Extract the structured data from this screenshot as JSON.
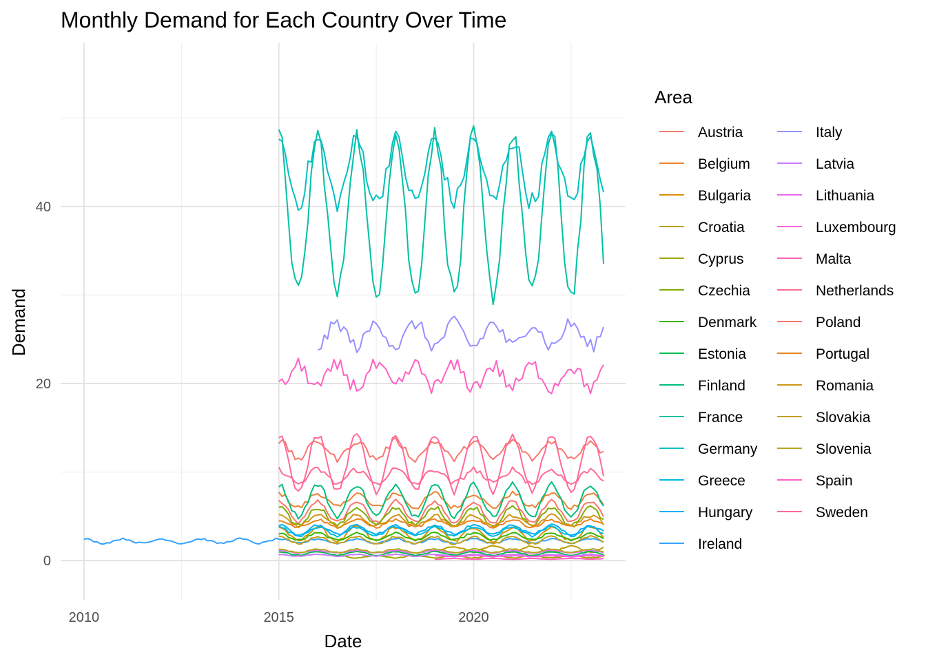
{
  "chart_data": {
    "type": "line",
    "title": "Monthly Demand for Each Country Over Time",
    "xlabel": "Date",
    "ylabel": "Demand",
    "xlim": [
      2009.4,
      2023.9
    ],
    "ylim": [
      -4.5,
      58.5
    ],
    "x_ticks": [
      {
        "value": 2010,
        "label": "2010"
      },
      {
        "value": 2015,
        "label": "2015"
      },
      {
        "value": 2020,
        "label": "2020"
      }
    ],
    "y_ticks": [
      {
        "value": 0,
        "label": "0"
      },
      {
        "value": 20,
        "label": "20"
      },
      {
        "value": 40,
        "label": "40"
      }
    ],
    "grid": true,
    "legend_position": "right",
    "legend_title": "Area",
    "series": [
      {
        "name": "Austria",
        "color": "#F8766D",
        "start": 2015.0,
        "base": 5.5,
        "amp": 1.2,
        "phase": 0.0,
        "noise": 0.25
      },
      {
        "name": "Belgium",
        "color": "#EA8331",
        "start": 2015.0,
        "base": 6.8,
        "amp": 0.8,
        "phase": 0.0,
        "noise": 0.3
      },
      {
        "name": "Bulgaria",
        "color": "#D89000",
        "start": 2015.0,
        "base": 3.0,
        "amp": 0.8,
        "phase": 0.0,
        "noise": 0.2
      },
      {
        "name": "Croatia",
        "color": "#C09B00",
        "start": 2019.0,
        "base": 1.3,
        "amp": 0.3,
        "phase": 0.5,
        "noise": 0.1
      },
      {
        "name": "Cyprus",
        "color": "#A3A500",
        "start": 2016.7,
        "base": 0.45,
        "amp": 0.15,
        "phase": 0.5,
        "noise": 0.05
      },
      {
        "name": "Czechia",
        "color": "#7CAE00",
        "start": 2015.0,
        "base": 5.0,
        "amp": 1.0,
        "phase": 0.0,
        "noise": 0.25
      },
      {
        "name": "Denmark",
        "color": "#39B600",
        "start": 2015.0,
        "base": 2.7,
        "amp": 0.4,
        "phase": 0.0,
        "noise": 0.12
      },
      {
        "name": "Estonia",
        "color": "#00BB4E",
        "start": 2015.0,
        "base": 0.8,
        "amp": 0.2,
        "phase": 0.0,
        "noise": 0.05
      },
      {
        "name": "Finland",
        "color": "#00BF7D",
        "start": 2015.0,
        "base": 6.8,
        "amp": 1.8,
        "phase": 0.0,
        "noise": 0.3
      },
      {
        "name": "France",
        "color": "#00C1A3",
        "start": 2015.0,
        "base": 39.0,
        "amp": 9.0,
        "phase": 0.0,
        "noise": 1.2
      },
      {
        "name": "Germany",
        "color": "#00BFC4",
        "start": 2015.0,
        "base": 44.0,
        "amp": 3.5,
        "phase": 0.0,
        "noise": 1.2
      },
      {
        "name": "Greece",
        "color": "#00BAE0",
        "start": 2015.0,
        "base": 3.3,
        "amp": 0.5,
        "phase": 0.0,
        "noise": 0.15
      },
      {
        "name": "Hungary",
        "color": "#00B0F6",
        "start": 2015.0,
        "base": 3.5,
        "amp": 0.5,
        "phase": 0.0,
        "noise": 0.15
      },
      {
        "name": "Ireland",
        "color": "#35A2FF",
        "start": 2010.0,
        "base": 2.2,
        "amp": 0.25,
        "phase": 0.0,
        "noise": 0.1
      },
      {
        "name": "Italy",
        "color": "#9590FF",
        "start": 2016.0,
        "base": 25.5,
        "amp": 1.3,
        "phase": 0.5,
        "noise": 0.8
      },
      {
        "name": "Latvia",
        "color": "#C77CFF",
        "start": 2015.0,
        "base": 0.6,
        "amp": 0.1,
        "phase": 0.0,
        "noise": 0.04
      },
      {
        "name": "Lithuania",
        "color": "#E76BF3",
        "start": 2015.0,
        "base": 1.0,
        "amp": 0.15,
        "phase": 0.0,
        "noise": 0.05
      },
      {
        "name": "Luxembourg",
        "color": "#FA62DB",
        "start": 2019.0,
        "base": 0.5,
        "amp": 0.05,
        "phase": 0.0,
        "noise": 0.03
      },
      {
        "name": "Malta",
        "color": "#FF62BC",
        "start": 2019.0,
        "base": 0.2,
        "amp": 0.05,
        "phase": 0.5,
        "noise": 0.02
      },
      {
        "name": "Netherlands",
        "color": "#FF6C91",
        "start": 2015.0,
        "base": 9.5,
        "amp": 0.8,
        "phase": 0.0,
        "noise": 0.35
      },
      {
        "name": "Poland",
        "color": "#F8766D",
        "start": 2015.0,
        "base": 12.5,
        "amp": 1.0,
        "phase": 0.0,
        "noise": 0.4
      },
      {
        "name": "Portugal",
        "color": "#E7851E",
        "start": 2015.0,
        "base": 4.2,
        "amp": 0.4,
        "phase": 0.0,
        "noise": 0.15
      },
      {
        "name": "Romania",
        "color": "#D2961A",
        "start": 2015.0,
        "base": 4.5,
        "amp": 0.6,
        "phase": 0.0,
        "noise": 0.2
      },
      {
        "name": "Slovakia",
        "color": "#C5A020",
        "start": 2015.0,
        "base": 2.3,
        "amp": 0.4,
        "phase": 0.0,
        "noise": 0.12
      },
      {
        "name": "Slovenia",
        "color": "#B3A722",
        "start": 2015.0,
        "base": 1.1,
        "amp": 0.2,
        "phase": 0.0,
        "noise": 0.06
      },
      {
        "name": "Spain",
        "color": "#FF61C3",
        "start": 2015.0,
        "base": 20.8,
        "amp": 1.2,
        "phase": 0.5,
        "noise": 0.9
      },
      {
        "name": "Sweden",
        "color": "#FF6A98",
        "start": 2015.0,
        "base": 11.0,
        "amp": 3.2,
        "phase": 0.0,
        "noise": 0.4
      }
    ]
  }
}
